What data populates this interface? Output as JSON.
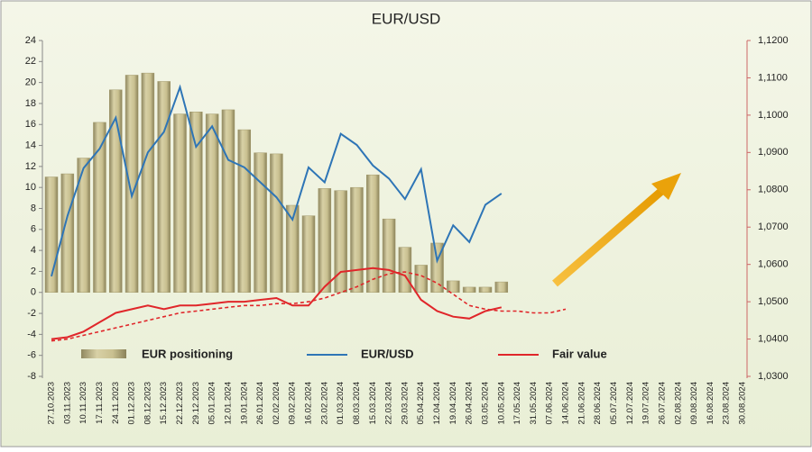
{
  "chart_data": {
    "type": "bar-line",
    "title": "EUR/USD",
    "categories": [
      "27.10.2023",
      "03.11.2023",
      "10.11.2023",
      "17.11.2023",
      "24.11.2023",
      "01.12.2023",
      "08.12.2023",
      "15.12.2023",
      "22.12.2023",
      "29.12.2023",
      "05.01.2024",
      "12.01.2024",
      "19.01.2024",
      "26.01.2024",
      "02.02.2024",
      "09.02.2024",
      "16.02.2024",
      "23.02.2024",
      "01.03.2024",
      "08.03.2024",
      "15.03.2024",
      "22.03.2024",
      "29.03.2024",
      "05.04.2024",
      "12.04.2024",
      "19.04.2024",
      "26.04.2024",
      "03.05.2024",
      "10.05.2024",
      "17.05.2024",
      "31.05.2024",
      "07.06.2024",
      "14.06.2024",
      "21.06.2024",
      "28.06.2024",
      "05.07.2024",
      "12.07.2024",
      "19.07.2024",
      "26.07.2024",
      "02.08.2024",
      "09.08.2024",
      "16.08.2024",
      "23.08.2024",
      "30.08.2024"
    ],
    "series": [
      {
        "name": "EUR positioning",
        "kind": "bar",
        "color": "#c8bf8e",
        "values": [
          11,
          11.3,
          12.8,
          16.2,
          19.3,
          20.7,
          20.9,
          20.1,
          17,
          17.2,
          17,
          17.4,
          15.5,
          13.3,
          13.2,
          8.3,
          7.3,
          9.9,
          9.7,
          10,
          11.2,
          7,
          4.3,
          2.6,
          4.7,
          1.1,
          0.5,
          0.5,
          1,
          null,
          null,
          null,
          null,
          null,
          null,
          null,
          null,
          null,
          null,
          null,
          null,
          null,
          null,
          null
        ]
      },
      {
        "name": "EUR/USD",
        "kind": "line",
        "axis": "y2",
        "color": "#2e75b6",
        "values": [
          1.0568,
          1.073,
          1.0858,
          1.091,
          1.0993,
          1.0783,
          1.09,
          1.0955,
          1.1075,
          1.0915,
          1.097,
          1.088,
          1.086,
          1.082,
          1.078,
          1.072,
          1.086,
          1.082,
          1.095,
          1.092,
          1.0865,
          1.083,
          1.0775,
          1.0855,
          1.061,
          1.0705,
          1.066,
          1.076,
          1.079,
          null,
          null,
          null,
          null,
          null,
          null,
          null,
          null,
          null,
          null,
          null,
          null,
          null,
          null,
          null
        ]
      },
      {
        "name": "Fair value",
        "kind": "line",
        "axis": "y2",
        "color": "#e0262a",
        "values": [
          1.04,
          1.0405,
          1.042,
          1.0445,
          1.047,
          1.048,
          1.049,
          1.048,
          1.049,
          1.049,
          1.0495,
          1.05,
          1.05,
          1.0505,
          1.051,
          1.049,
          1.049,
          1.054,
          1.058,
          1.0585,
          1.059,
          1.0585,
          1.057,
          1.0505,
          1.0475,
          1.046,
          1.0455,
          1.0475,
          1.0485,
          null,
          null,
          null,
          null,
          null,
          null,
          null,
          null,
          null,
          null,
          null,
          null,
          null,
          null,
          null
        ]
      },
      {
        "kind": "line",
        "axis": "y2",
        "dashed": true,
        "color": "#e0262a",
        "values": [
          1.0395,
          1.04,
          1.041,
          1.042,
          1.043,
          1.044,
          1.045,
          1.046,
          1.047,
          1.0475,
          1.048,
          1.0485,
          1.049,
          1.049,
          1.0495,
          1.0495,
          1.05,
          1.051,
          1.0525,
          1.054,
          1.056,
          1.0575,
          1.058,
          1.057,
          1.055,
          1.052,
          1.049,
          1.048,
          1.0475,
          1.0475,
          1.047,
          1.047,
          1.048,
          null,
          null,
          null,
          null,
          null,
          null,
          null,
          null,
          null,
          null,
          null
        ]
      }
    ],
    "ylim": [
      -8,
      24
    ],
    "yticks": [
      -8,
      -6,
      -4,
      -2,
      0,
      2,
      4,
      6,
      8,
      10,
      12,
      14,
      16,
      18,
      20,
      22,
      24
    ],
    "y2lim": [
      1.03,
      1.12
    ],
    "y2ticks": [
      {
        "value": 1.03,
        "label": "1,0300"
      },
      {
        "value": 1.04,
        "label": "1,0400"
      },
      {
        "value": 1.05,
        "label": "1,0500"
      },
      {
        "value": 1.06,
        "label": "1,0600"
      },
      {
        "value": 1.07,
        "label": "1,0700"
      },
      {
        "value": 1.08,
        "label": "1,0800"
      },
      {
        "value": 1.09,
        "label": "1,0900"
      },
      {
        "value": 1.1,
        "label": "1,1000"
      },
      {
        "value": 1.11,
        "label": "1,1100"
      },
      {
        "value": 1.12,
        "label": "1,1200"
      }
    ],
    "grid": false
  }
}
